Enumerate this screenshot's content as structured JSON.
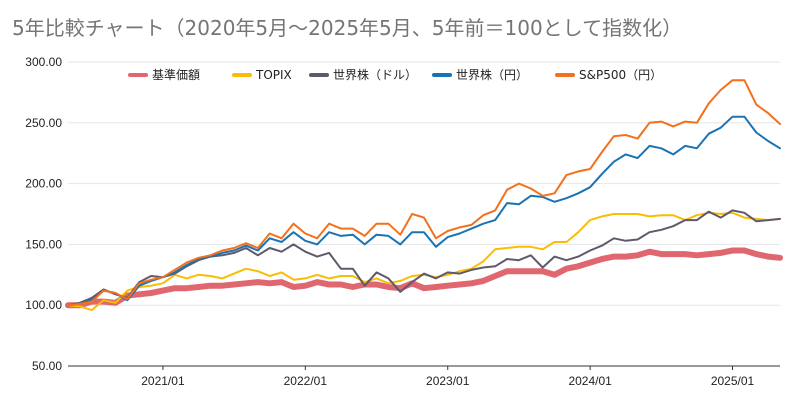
{
  "chart_data": {
    "type": "line",
    "title": "5年比較チャート（2020年5月〜2025年5月、5年前＝100として指数化）",
    "xlabel": "",
    "ylabel": "",
    "ylim": [
      50,
      300
    ],
    "yticks": [
      "50.00",
      "100.00",
      "150.00",
      "200.00",
      "250.00",
      "300.00"
    ],
    "xticks": [
      "2021/01",
      "2022/01",
      "2023/01",
      "2024/01",
      "2025/01"
    ],
    "x": [
      "2020/05",
      "2020/06",
      "2020/07",
      "2020/08",
      "2020/09",
      "2020/10",
      "2020/11",
      "2020/12",
      "2021/01",
      "2021/02",
      "2021/03",
      "2021/04",
      "2021/05",
      "2021/06",
      "2021/07",
      "2021/08",
      "2021/09",
      "2021/10",
      "2021/11",
      "2021/12",
      "2022/01",
      "2022/02",
      "2022/03",
      "2022/04",
      "2022/05",
      "2022/06",
      "2022/07",
      "2022/08",
      "2022/09",
      "2022/10",
      "2022/11",
      "2022/12",
      "2023/01",
      "2023/02",
      "2023/03",
      "2023/04",
      "2023/05",
      "2023/06",
      "2023/07",
      "2023/08",
      "2023/09",
      "2023/10",
      "2023/11",
      "2023/12",
      "2024/01",
      "2024/02",
      "2024/03",
      "2024/04",
      "2024/05",
      "2024/06",
      "2024/07",
      "2024/08",
      "2024/09",
      "2024/10",
      "2024/11",
      "2024/12",
      "2025/01",
      "2025/02",
      "2025/03",
      "2025/04",
      "2025/05"
    ],
    "grid": true,
    "legend_position": "top",
    "series": [
      {
        "name": "基準価額",
        "color": "#e06670",
        "values": [
          100,
          100,
          103,
          103,
          102,
          108,
          109,
          110,
          112,
          114,
          114,
          115,
          116,
          116,
          117,
          118,
          119,
          118,
          119,
          115,
          116,
          119,
          117,
          117,
          115,
          117,
          117,
          115,
          114,
          118,
          114,
          115,
          116,
          117,
          118,
          120,
          124,
          128,
          128,
          128,
          128,
          125,
          130,
          132,
          135,
          138,
          140,
          140,
          141,
          144,
          142,
          142,
          142,
          141,
          142,
          143,
          145,
          145,
          142,
          140,
          139
        ],
        "width": 6
      },
      {
        "name": "TOPIX",
        "color": "#fbbc04",
        "values": [
          100,
          99,
          96,
          104,
          102,
          112,
          115,
          116,
          118,
          125,
          122,
          125,
          124,
          122,
          126,
          130,
          128,
          124,
          127,
          121,
          122,
          125,
          122,
          124,
          124,
          119,
          122,
          118,
          120,
          124,
          125,
          123,
          125,
          128,
          130,
          136,
          146,
          147,
          148,
          148,
          146,
          152,
          152,
          160,
          170,
          173,
          175,
          175,
          175,
          173,
          174,
          174,
          170,
          174,
          176,
          175,
          176,
          172,
          171,
          170,
          171
        ],
        "width": 2
      },
      {
        "name": "世界株（ドル）",
        "color": "#5f5a6b",
        "values": [
          100,
          102,
          106,
          113,
          109,
          106,
          119,
          124,
          123,
          126,
          132,
          137,
          140,
          141,
          143,
          147,
          141,
          147,
          144,
          150,
          144,
          140,
          143,
          130,
          130,
          116,
          127,
          122,
          111,
          119,
          126,
          122,
          127,
          126,
          129,
          131,
          132,
          138,
          137,
          141,
          131,
          140,
          137,
          140,
          145,
          149,
          155,
          153,
          154,
          160,
          162,
          165,
          170,
          170,
          177,
          172,
          178,
          176,
          169,
          170,
          171
        ],
        "width": 2
      },
      {
        "name": "世界株（円）",
        "color": "#1a73b5",
        "values": [
          100,
          101,
          104,
          112,
          110,
          104,
          116,
          120,
          123,
          127,
          133,
          138,
          140,
          143,
          145,
          149,
          145,
          155,
          152,
          160,
          153,
          150,
          160,
          157,
          158,
          150,
          158,
          157,
          150,
          160,
          160,
          148,
          156,
          159,
          163,
          167,
          170,
          184,
          183,
          190,
          189,
          185,
          188,
          192,
          197,
          208,
          218,
          224,
          221,
          231,
          229,
          224,
          231,
          229,
          241,
          246,
          255,
          255,
          242,
          235,
          229
        ],
        "width": 2
      },
      {
        "name": "S&P500（円）",
        "color": "#f4701d",
        "values": [
          100,
          101,
          103,
          112,
          110,
          105,
          118,
          121,
          123,
          129,
          135,
          139,
          141,
          145,
          147,
          151,
          147,
          159,
          155,
          167,
          159,
          155,
          167,
          163,
          163,
          157,
          167,
          167,
          158,
          175,
          172,
          155,
          161,
          164,
          166,
          174,
          178,
          195,
          200,
          196,
          190,
          192,
          207,
          210,
          212,
          226,
          239,
          240,
          237,
          250,
          251,
          247,
          251,
          250,
          266,
          277,
          285,
          285,
          265,
          258,
          249
        ],
        "width": 2
      }
    ]
  }
}
